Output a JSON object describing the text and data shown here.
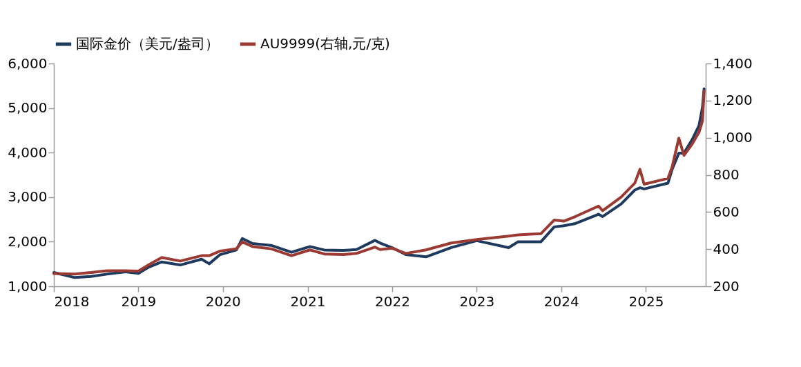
{
  "chart_data": {
    "type": "line",
    "legend": "top",
    "grid": false,
    "line_style": "solid",
    "marker": "none",
    "x": [
      "2018-01-01",
      "2018-04-01",
      "2018-06-10",
      "2018-08-18",
      "2018-11-06",
      "2019-01-01",
      "2019-02-14",
      "2019-04-12",
      "2019-07-01",
      "2019-10-01",
      "2019-11-03",
      "2019-12-20",
      "2020-02-28",
      "2020-03-25",
      "2020-05-08",
      "2020-07-27",
      "2020-10-23",
      "2021-01-11",
      "2021-03-14",
      "2021-06-03",
      "2021-07-31",
      "2021-10-19",
      "2021-11-10",
      "2022-01-01",
      "2022-03-01",
      "2022-05-27",
      "2022-09-13",
      "2023-01-01",
      "2023-05-19",
      "2023-06-28",
      "2023-10-05",
      "2023-12-02",
      "2024-01-12",
      "2024-03-03",
      "2024-06-10",
      "2024-06-28",
      "2024-09-16",
      "2024-11-14",
      "2024-12-06",
      "2024-12-24",
      "2025-04-06",
      "2025-04-24",
      "2025-05-23",
      "2025-06-14",
      "2025-07-20",
      "2025-08-18",
      "2025-09-02",
      "2025-09-09"
    ],
    "xlim": [
      "2018-01-01",
      "2025-09-16"
    ],
    "xticks": [
      "2018",
      "2019",
      "2020",
      "2021",
      "2022",
      "2023",
      "2024",
      "2025"
    ],
    "ylim": [
      1000,
      6000
    ],
    "yticks": [
      {
        "value": 1000,
        "label": "1,000"
      },
      {
        "value": 2000,
        "label": "2,000"
      },
      {
        "value": 3000,
        "label": "3,000"
      },
      {
        "value": 4000,
        "label": "4,000"
      },
      {
        "value": 5000,
        "label": "5,000"
      },
      {
        "value": 6000,
        "label": "6,000"
      }
    ],
    "y2lim": [
      200,
      1400
    ],
    "y2ticks": [
      {
        "value": 200,
        "label": "200"
      },
      {
        "value": 400,
        "label": "400"
      },
      {
        "value": 600,
        "label": "600"
      },
      {
        "value": 800,
        "label": "800"
      },
      {
        "value": 1000,
        "label": "1,000"
      },
      {
        "value": 1200,
        "label": "1,200"
      },
      {
        "value": 1400,
        "label": "1,400"
      }
    ],
    "series": [
      {
        "name": "国际金价（美元/盎司）",
        "color": "#1f3a5f",
        "values": [
          1309,
          1196,
          1222,
          1273,
          1325,
          1289,
          1428,
          1546,
          1479,
          1608,
          1505,
          1711,
          1814,
          2072,
          1959,
          1918,
          1763,
          1892,
          1814,
          1804,
          1825,
          2031,
          1971,
          1866,
          1713,
          1661,
          1868,
          2023,
          1868,
          1997,
          1997,
          2333,
          2358,
          2410,
          2617,
          2565,
          2849,
          3159,
          3211,
          3185,
          3314,
          3624,
          3986,
          3986,
          4295,
          4605,
          5019,
          5432
        ]
      },
      {
        "name": "AU9999(右轴,元/克)",
        "color": "#9b3a32",
        "axis": "y2",
        "values": [
          269,
          266,
          274,
          284,
          284,
          282,
          315,
          355,
          336,
          365,
          365,
          390,
          402,
          439,
          414,
          402,
          365,
          396,
          374,
          371,
          377,
          411,
          398,
          405,
          377,
          396,
          433,
          452,
          470,
          477,
          483,
          557,
          551,
          576,
          632,
          607,
          681,
          756,
          830,
          750,
          781,
          843,
          998,
          905,
          967,
          1029,
          1091,
          1252
        ]
      }
    ]
  }
}
